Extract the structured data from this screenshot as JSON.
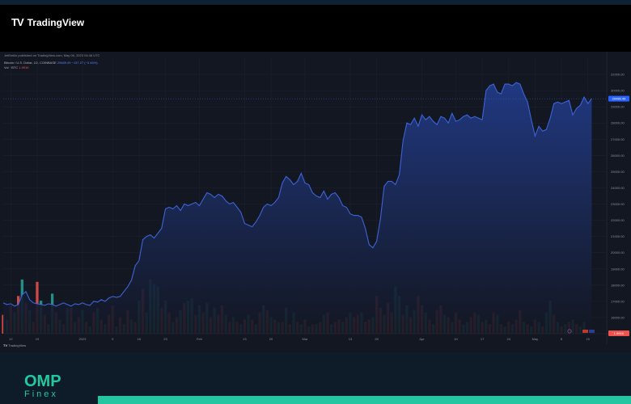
{
  "header": {
    "brand_mark": "TV",
    "brand_name": "TradingView"
  },
  "info": {
    "published": "JetEmilio published on TradingView.com, May 06, 2023 04:46 UTC",
    "symbol_line_label": "Bitcoin / U.S. Dollar, 1D, COINBASE",
    "symbol_line_value": "29489.49 −137.27 (−0.46%)",
    "volume_label": "Vol · BTC",
    "volume_value": "1.991K"
  },
  "price_tag": "29489.49",
  "volume_tag": "1.991K",
  "footer_brand": "TradingView",
  "bottom_brand": {
    "name": "OMP",
    "sub": "Finex"
  },
  "colors": {
    "line": "#3d63d8",
    "area_top": "#213a86",
    "area_bottom": "#131722",
    "vol_up": "#26a69a",
    "vol_down": "#ef5350",
    "price_tag_bg": "#2962ff",
    "volume_tag_bg": "#ef5350"
  },
  "chart_data": {
    "type": "area",
    "title": "Bitcoin / U.S. Dollar, 1D, COINBASE",
    "xlabel": "",
    "ylabel": "",
    "ylim": [
      15000,
      32000
    ],
    "y_ticks": [
      16000,
      17000,
      18000,
      19000,
      20000,
      21000,
      22000,
      23000,
      24000,
      25000,
      26000,
      27000,
      28000,
      29000,
      30000,
      31000
    ],
    "y_tick_labels": [
      "16000.00",
      "17000.00",
      "18000.00",
      "19000.00",
      "20000.00",
      "21000.00",
      "22000.00",
      "23000.00",
      "24000.00",
      "25000.00",
      "26000.00",
      "27000.00",
      "28000.00",
      "29000.00",
      "30000.00",
      "31000.00"
    ],
    "x_ticks": [
      {
        "label": "12",
        "day": 0
      },
      {
        "label": "19",
        "day": 7
      },
      {
        "label": "2023",
        "day": 19
      },
      {
        "label": "9",
        "day": 27
      },
      {
        "label": "16",
        "day": 34
      },
      {
        "label": "23",
        "day": 41
      },
      {
        "label": "Feb",
        "day": 50
      },
      {
        "label": "13",
        "day": 62
      },
      {
        "label": "20",
        "day": 69
      },
      {
        "label": "Mar",
        "day": 78
      },
      {
        "label": "13",
        "day": 90
      },
      {
        "label": "20",
        "day": 97
      },
      {
        "label": "Apr",
        "day": 109
      },
      {
        "label": "10",
        "day": 118
      },
      {
        "label": "17",
        "day": 125
      },
      {
        "label": "24",
        "day": 132
      },
      {
        "label": "May",
        "day": 139
      },
      {
        "label": "8",
        "day": 146
      },
      {
        "label": "15",
        "day": 153
      }
    ],
    "series": [
      {
        "values": [
          16900,
          16800,
          16850,
          16700,
          16800,
          17400,
          17600,
          17100,
          16900,
          16850,
          16800,
          16750,
          16850,
          16800,
          16700,
          16800,
          16900,
          16800,
          16700,
          16850,
          16800,
          16900,
          16800,
          16750,
          17000,
          16950,
          17100,
          17000,
          17200,
          17300,
          17250,
          17300,
          17600,
          17900,
          18300,
          19200,
          19500,
          20800,
          21000,
          21100,
          20900,
          21200,
          21500,
          22700,
          22800,
          22700,
          22900,
          22600,
          23000,
          22900,
          23000,
          23100,
          22900,
          23300,
          23700,
          23600,
          23400,
          23600,
          23500,
          23200,
          23000,
          23100,
          22800,
          22500,
          21800,
          21700,
          21600,
          21900,
          22300,
          22800,
          23000,
          22900,
          23100,
          23400,
          24300,
          24700,
          24500,
          24200,
          24400,
          24900,
          24300,
          24200,
          23700,
          23500,
          23400,
          23800,
          23300,
          23600,
          23700,
          23400,
          22900,
          22800,
          22400,
          22300,
          22300,
          22200,
          21500,
          20500,
          20300,
          20700,
          22100,
          24100,
          24400,
          24400,
          24200,
          24800,
          26900,
          28000,
          27900,
          28300,
          27800,
          28500,
          28200,
          28400,
          28100,
          27900,
          28400,
          28300,
          28000,
          28600,
          28100,
          28200,
          28400,
          28500,
          28300,
          28400,
          28300,
          28200,
          30000,
          30300,
          30400,
          29900,
          29800,
          30400,
          30400,
          30300,
          30500,
          30400,
          29800,
          29300,
          28200,
          27200,
          27800,
          27500,
          27600,
          28300,
          29200,
          29300,
          29200,
          29300,
          29400,
          28500,
          28900,
          29100,
          29600,
          29200,
          29500
        ],
        "start_day": -2
      }
    ],
    "volume_max_visible": 24000,
    "volume_values": [
      {
        "v": 8000,
        "up": false
      },
      {
        "v": 6000,
        "up": true
      },
      {
        "v": 12000,
        "up": false
      },
      {
        "v": 9000,
        "up": true
      },
      {
        "v": 16000,
        "up": false
      },
      {
        "v": 23000,
        "up": true
      },
      {
        "v": 13000,
        "up": false
      },
      {
        "v": 10000,
        "up": true
      },
      {
        "v": 5000,
        "up": false
      },
      {
        "v": 22000,
        "up": false
      },
      {
        "v": 14000,
        "up": true
      },
      {
        "v": 8000,
        "up": false
      },
      {
        "v": 4000,
        "up": true
      },
      {
        "v": 17000,
        "up": true
      },
      {
        "v": 9000,
        "up": false
      },
      {
        "v": 6000,
        "up": true
      },
      {
        "v": 4000,
        "up": false
      },
      {
        "v": 11000,
        "up": true
      },
      {
        "v": 11000,
        "up": false
      },
      {
        "v": 5000,
        "up": true
      },
      {
        "v": 7000,
        "up": false
      },
      {
        "v": 10000,
        "up": true
      },
      {
        "v": 5000,
        "up": false
      },
      {
        "v": 3000,
        "up": true
      },
      {
        "v": 9000,
        "up": false
      },
      {
        "v": 11000,
        "up": true
      },
      {
        "v": 6000,
        "up": false
      },
      {
        "v": 4000,
        "up": true
      },
      {
        "v": 8000,
        "up": false
      },
      {
        "v": 12000,
        "up": false
      },
      {
        "v": 3000,
        "up": true
      },
      {
        "v": 7000,
        "up": false
      },
      {
        "v": 4000,
        "up": true
      },
      {
        "v": 10000,
        "up": false
      },
      {
        "v": 6000,
        "up": true
      },
      {
        "v": 5000,
        "up": false
      },
      {
        "v": 14000,
        "up": true
      },
      {
        "v": 19000,
        "up": false
      },
      {
        "v": 9000,
        "up": true
      },
      {
        "v": 23000,
        "up": true
      },
      {
        "v": 21000,
        "up": true
      },
      {
        "v": 20000,
        "up": true
      },
      {
        "v": 11000,
        "up": false
      },
      {
        "v": 14000,
        "up": true
      },
      {
        "v": 9000,
        "up": false
      },
      {
        "v": 5000,
        "up": true
      },
      {
        "v": 7000,
        "up": false
      },
      {
        "v": 10000,
        "up": true
      },
      {
        "v": 13000,
        "up": false
      },
      {
        "v": 14000,
        "up": true
      },
      {
        "v": 15000,
        "up": true
      },
      {
        "v": 8000,
        "up": false
      },
      {
        "v": 12000,
        "up": true
      },
      {
        "v": 9000,
        "up": false
      },
      {
        "v": 13000,
        "up": true
      },
      {
        "v": 7000,
        "up": false
      },
      {
        "v": 11000,
        "up": true
      },
      {
        "v": 8000,
        "up": false
      },
      {
        "v": 12000,
        "up": false
      },
      {
        "v": 8000,
        "up": true
      },
      {
        "v": 5000,
        "up": false
      },
      {
        "v": 7000,
        "up": true
      },
      {
        "v": 5000,
        "up": false
      },
      {
        "v": 4000,
        "up": true
      },
      {
        "v": 6000,
        "up": false
      },
      {
        "v": 8000,
        "up": true
      },
      {
        "v": 6000,
        "up": false
      },
      {
        "v": 4000,
        "up": true
      },
      {
        "v": 9000,
        "up": false
      },
      {
        "v": 12000,
        "up": true
      },
      {
        "v": 10000,
        "up": false
      },
      {
        "v": 7000,
        "up": true
      },
      {
        "v": 6000,
        "up": false
      },
      {
        "v": 5000,
        "up": true
      },
      {
        "v": 5000,
        "up": false
      },
      {
        "v": 11000,
        "up": true
      },
      {
        "v": 4000,
        "up": false
      },
      {
        "v": 9000,
        "up": true
      },
      {
        "v": 5000,
        "up": false
      },
      {
        "v": 4000,
        "up": true
      },
      {
        "v": 6000,
        "up": false
      },
      {
        "v": 3000,
        "up": true
      },
      {
        "v": 4000,
        "up": false
      },
      {
        "v": 4000,
        "up": true
      },
      {
        "v": 5000,
        "up": false
      },
      {
        "v": 8000,
        "up": true
      },
      {
        "v": 9000,
        "up": false
      },
      {
        "v": 4000,
        "up": true
      },
      {
        "v": 5000,
        "up": false
      },
      {
        "v": 6000,
        "up": false
      },
      {
        "v": 5000,
        "up": true
      },
      {
        "v": 7000,
        "up": false
      },
      {
        "v": 9000,
        "up": true
      },
      {
        "v": 7000,
        "up": false
      },
      {
        "v": 8000,
        "up": false
      },
      {
        "v": 9000,
        "up": true
      },
      {
        "v": 5000,
        "up": false
      },
      {
        "v": 6000,
        "up": false
      },
      {
        "v": 7000,
        "up": true
      },
      {
        "v": 16000,
        "up": false
      },
      {
        "v": 11000,
        "up": false
      },
      {
        "v": 8000,
        "up": true
      },
      {
        "v": 13000,
        "up": false
      },
      {
        "v": 9000,
        "up": false
      },
      {
        "v": 20000,
        "up": true
      },
      {
        "v": 16000,
        "up": true
      },
      {
        "v": 8000,
        "up": false
      },
      {
        "v": 12000,
        "up": true
      },
      {
        "v": 7000,
        "up": false
      },
      {
        "v": 10000,
        "up": true
      },
      {
        "v": 16000,
        "up": false
      },
      {
        "v": 12000,
        "up": false
      },
      {
        "v": 9000,
        "up": true
      },
      {
        "v": 6000,
        "up": false
      },
      {
        "v": 4000,
        "up": true
      },
      {
        "v": 10000,
        "up": false
      },
      {
        "v": 12000,
        "up": false
      },
      {
        "v": 8000,
        "up": true
      },
      {
        "v": 7000,
        "up": false
      },
      {
        "v": 5000,
        "up": true
      },
      {
        "v": 9000,
        "up": false
      },
      {
        "v": 6000,
        "up": false
      },
      {
        "v": 4000,
        "up": true
      },
      {
        "v": 5000,
        "up": true
      },
      {
        "v": 7000,
        "up": false
      },
      {
        "v": 9000,
        "up": false
      },
      {
        "v": 8000,
        "up": true
      },
      {
        "v": 5000,
        "up": false
      },
      {
        "v": 6000,
        "up": true
      },
      {
        "v": 4000,
        "up": false
      },
      {
        "v": 9000,
        "up": false
      },
      {
        "v": 8000,
        "up": true
      },
      {
        "v": 4000,
        "up": false
      },
      {
        "v": 3000,
        "up": true
      },
      {
        "v": 5000,
        "up": false
      },
      {
        "v": 4000,
        "up": true
      },
      {
        "v": 6000,
        "up": false
      },
      {
        "v": 10000,
        "up": false
      },
      {
        "v": 5000,
        "up": true
      },
      {
        "v": 4000,
        "up": false
      },
      {
        "v": 3000,
        "up": true
      },
      {
        "v": 6000,
        "up": false
      },
      {
        "v": 5000,
        "up": true
      },
      {
        "v": 3000,
        "up": false
      },
      {
        "v": 9000,
        "up": true
      },
      {
        "v": 14000,
        "up": true
      },
      {
        "v": 8000,
        "up": false
      },
      {
        "v": 5000,
        "up": true
      },
      {
        "v": 3000,
        "up": false
      },
      {
        "v": 4000,
        "up": true
      },
      {
        "v": 5000,
        "up": false
      },
      {
        "v": 6000,
        "up": true
      },
      {
        "v": 4000,
        "up": false
      },
      {
        "v": 3000,
        "up": true
      },
      {
        "v": 5000,
        "up": true
      }
    ]
  }
}
